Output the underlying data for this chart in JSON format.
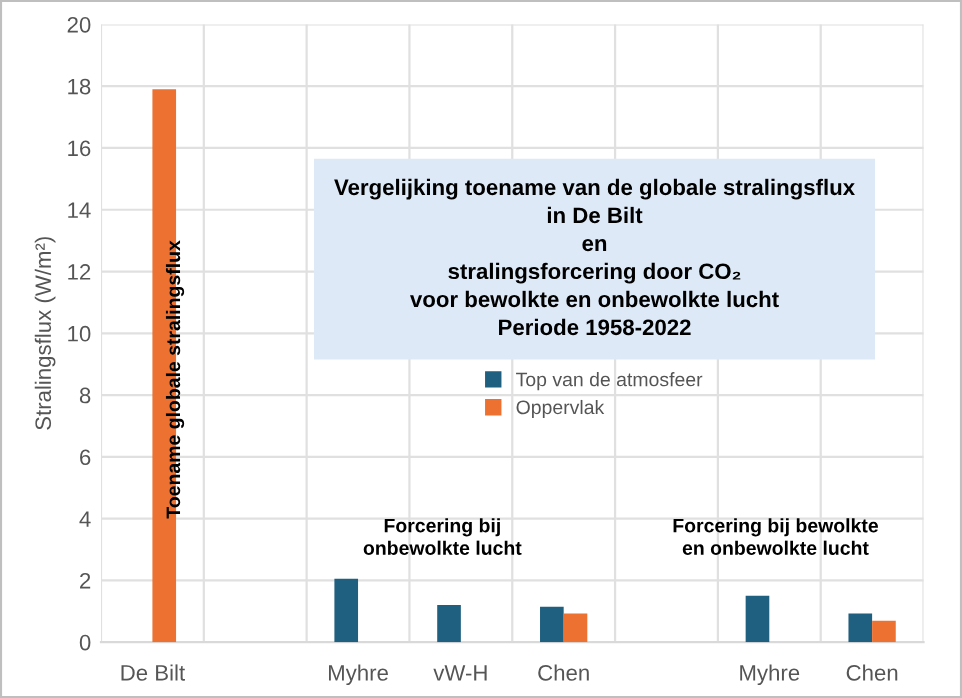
{
  "chart_data": {
    "type": "bar",
    "title": "Vergelijking toename van de globale stralingsflux\nin De Bilt\nen\nstralingsforcering door CO₂\nvoor bewolkte en onbewolkte lucht\nPeriode 1958-2022",
    "ylabel": "Stralingsflux (W/m²)",
    "categories": [
      "De Bilt",
      null,
      "Myhre",
      "vW-H",
      "Chen",
      null,
      "Myhre",
      "Chen"
    ],
    "series": [
      {
        "name": "Top van de atmosfeer",
        "color": "#1f5f7f",
        "values": [
          null,
          null,
          2.05,
          1.2,
          1.15,
          null,
          1.5,
          0.93
        ]
      },
      {
        "name": "Oppervlak",
        "color": "#ed7131",
        "values": [
          17.9,
          null,
          null,
          null,
          0.93,
          null,
          null,
          0.69
        ]
      }
    ],
    "annotations": [
      "Toename globale stralingsflux",
      "Forcering bij\nonbewolkte lucht",
      "Forcering bij bewolkte\nen onbewolkte lucht"
    ],
    "ylim": [
      0,
      20
    ],
    "yticks": [
      0,
      2,
      4,
      6,
      8,
      10,
      12,
      14,
      16,
      18,
      20
    ],
    "grid": true,
    "legend": "center"
  }
}
